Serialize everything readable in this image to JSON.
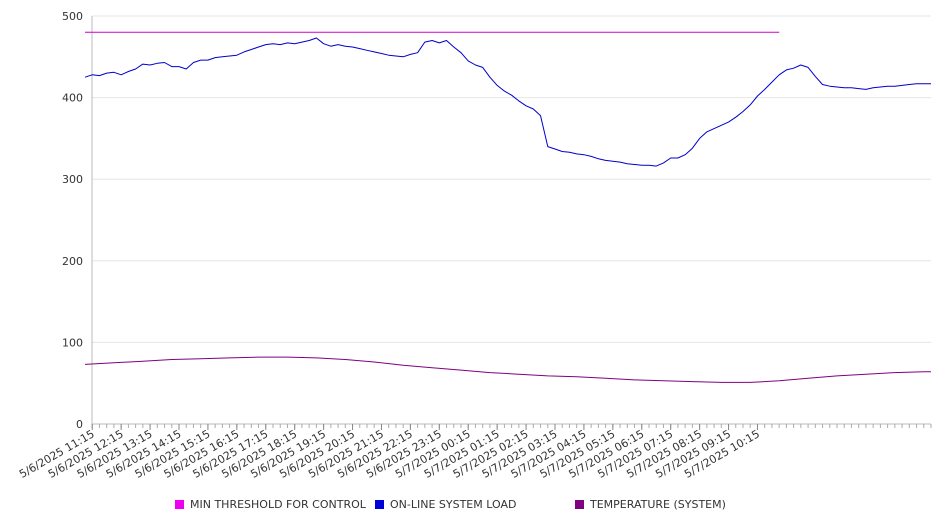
{
  "chart_data": {
    "type": "line",
    "ylim": [
      0,
      500
    ],
    "y_ticks": [
      0,
      100,
      200,
      300,
      400,
      500
    ],
    "grid": "horizontal",
    "legend_position": "bottom",
    "x_ticks": [
      "5/6/2025 11:15",
      "5/6/2025 12:15",
      "5/6/2025 13:15",
      "5/6/2025 14:15",
      "5/6/2025 15:15",
      "5/6/2025 16:15",
      "5/6/2025 17:15",
      "5/6/2025 18:15",
      "5/6/2025 19:15",
      "5/6/2025 20:15",
      "5/6/2025 21:15",
      "5/6/2025 22:15",
      "5/6/2025 23:15",
      "5/7/2025 00:15",
      "5/7/2025 01:15",
      "5/7/2025 02:15",
      "5/7/2025 03:15",
      "5/7/2025 04:15",
      "5/7/2025 05:15",
      "5/7/2025 06:15",
      "5/7/2025 07:15",
      "5/7/2025 08:15",
      "5/7/2025 09:15",
      "5/7/2025 10:15"
    ],
    "series": [
      {
        "name": "MIN THRESHOLD FOR CONTROL",
        "color": "#cc00cc",
        "points": [
          [
            "5/6/2025 11:00",
            480
          ],
          [
            "5/7/2025 11:00",
            480
          ]
        ]
      },
      {
        "name": "ON-LINE SYSTEM LOAD",
        "color": "#0000cc",
        "points": [
          [
            "5/6/2025 11:00",
            425
          ],
          [
            "5/6/2025 11:15",
            428
          ],
          [
            "5/6/2025 11:30",
            427
          ],
          [
            "5/6/2025 11:45",
            430
          ],
          [
            "5/6/2025 12:00",
            431
          ],
          [
            "5/6/2025 12:15",
            428
          ],
          [
            "5/6/2025 12:30",
            432
          ],
          [
            "5/6/2025 12:45",
            435
          ],
          [
            "5/6/2025 13:00",
            441
          ],
          [
            "5/6/2025 13:15",
            440
          ],
          [
            "5/6/2025 13:30",
            442
          ],
          [
            "5/6/2025 13:45",
            443
          ],
          [
            "5/6/2025 14:00",
            438
          ],
          [
            "5/6/2025 14:15",
            438
          ],
          [
            "5/6/2025 14:30",
            435
          ],
          [
            "5/6/2025 14:45",
            443
          ],
          [
            "5/6/2025 15:00",
            446
          ],
          [
            "5/6/2025 15:15",
            446
          ],
          [
            "5/6/2025 15:30",
            449
          ],
          [
            "5/6/2025 15:45",
            450
          ],
          [
            "5/6/2025 16:00",
            451
          ],
          [
            "5/6/2025 16:15",
            452
          ],
          [
            "5/6/2025 16:30",
            456
          ],
          [
            "5/6/2025 16:45",
            459
          ],
          [
            "5/6/2025 17:00",
            462
          ],
          [
            "5/6/2025 17:15",
            465
          ],
          [
            "5/6/2025 17:30",
            466
          ],
          [
            "5/6/2025 17:45",
            465
          ],
          [
            "5/6/2025 18:00",
            467
          ],
          [
            "5/6/2025 18:15",
            466
          ],
          [
            "5/6/2025 18:30",
            468
          ],
          [
            "5/6/2025 18:45",
            470
          ],
          [
            "5/6/2025 19:00",
            473
          ],
          [
            "5/6/2025 19:15",
            466
          ],
          [
            "5/6/2025 19:30",
            463
          ],
          [
            "5/6/2025 19:45",
            465
          ],
          [
            "5/6/2025 20:00",
            463
          ],
          [
            "5/6/2025 20:15",
            462
          ],
          [
            "5/6/2025 20:30",
            460
          ],
          [
            "5/6/2025 20:45",
            458
          ],
          [
            "5/6/2025 21:00",
            456
          ],
          [
            "5/6/2025 21:15",
            454
          ],
          [
            "5/6/2025 21:30",
            452
          ],
          [
            "5/6/2025 21:45",
            451
          ],
          [
            "5/6/2025 22:00",
            450
          ],
          [
            "5/6/2025 22:15",
            453
          ],
          [
            "5/6/2025 22:30",
            455
          ],
          [
            "5/6/2025 22:45",
            468
          ],
          [
            "5/6/2025 23:00",
            470
          ],
          [
            "5/6/2025 23:15",
            467
          ],
          [
            "5/6/2025 23:30",
            470
          ],
          [
            "5/6/2025 23:45",
            462
          ],
          [
            "5/7/2025 00:00",
            455
          ],
          [
            "5/7/2025 00:15",
            445
          ],
          [
            "5/7/2025 00:30",
            440
          ],
          [
            "5/7/2025 00:45",
            437
          ],
          [
            "5/7/2025 01:00",
            425
          ],
          [
            "5/7/2025 01:15",
            415
          ],
          [
            "5/7/2025 01:30",
            408
          ],
          [
            "5/7/2025 01:45",
            403
          ],
          [
            "5/7/2025 02:00",
            396
          ],
          [
            "5/7/2025 02:15",
            390
          ],
          [
            "5/7/2025 02:30",
            386
          ],
          [
            "5/7/2025 02:45",
            378
          ],
          [
            "5/7/2025 03:00",
            340
          ],
          [
            "5/7/2025 03:15",
            337
          ],
          [
            "5/7/2025 03:30",
            334
          ],
          [
            "5/7/2025 03:45",
            333
          ],
          [
            "5/7/2025 04:00",
            331
          ],
          [
            "5/7/2025 04:15",
            330
          ],
          [
            "5/7/2025 04:30",
            328
          ],
          [
            "5/7/2025 04:45",
            325
          ],
          [
            "5/7/2025 05:00",
            323
          ],
          [
            "5/7/2025 05:15",
            322
          ],
          [
            "5/7/2025 05:30",
            321
          ],
          [
            "5/7/2025 05:45",
            319
          ],
          [
            "5/7/2025 06:00",
            318
          ],
          [
            "5/7/2025 06:15",
            317
          ],
          [
            "5/7/2025 06:30",
            317
          ],
          [
            "5/7/2025 06:45",
            316
          ],
          [
            "5/7/2025 07:00",
            320
          ],
          [
            "5/7/2025 07:15",
            326
          ],
          [
            "5/7/2025 07:30",
            326
          ],
          [
            "5/7/2025 07:45",
            330
          ],
          [
            "5/7/2025 08:00",
            338
          ],
          [
            "5/7/2025 08:15",
            350
          ],
          [
            "5/7/2025 08:30",
            358
          ],
          [
            "5/7/2025 08:45",
            362
          ],
          [
            "5/7/2025 09:00",
            366
          ],
          [
            "5/7/2025 09:15",
            370
          ],
          [
            "5/7/2025 09:30",
            376
          ],
          [
            "5/7/2025 09:45",
            383
          ],
          [
            "5/7/2025 10:00",
            391
          ],
          [
            "5/7/2025 10:15",
            402
          ],
          [
            "5/7/2025 10:30",
            410
          ],
          [
            "5/7/2025 10:45",
            419
          ],
          [
            "5/7/2025 11:00",
            428
          ],
          [
            "5/7/2025 11:15",
            434
          ],
          [
            "5/7/2025 11:30",
            436
          ],
          [
            "5/7/2025 11:45",
            440
          ],
          [
            "5/7/2025 12:00",
            437
          ],
          [
            "5/7/2025 12:15",
            426
          ],
          [
            "5/7/2025 12:30",
            416
          ],
          [
            "5/7/2025 12:45",
            414
          ],
          [
            "5/7/2025 13:00",
            413
          ],
          [
            "5/7/2025 13:15",
            412
          ],
          [
            "5/7/2025 13:30",
            412
          ],
          [
            "5/7/2025 13:45",
            411
          ],
          [
            "5/7/2025 14:00",
            410
          ],
          [
            "5/7/2025 14:15",
            412
          ],
          [
            "5/7/2025 14:30",
            413
          ],
          [
            "5/7/2025 14:45",
            414
          ],
          [
            "5/7/2025 15:00",
            414
          ],
          [
            "5/7/2025 15:15",
            415
          ],
          [
            "5/7/2025 15:30",
            416
          ],
          [
            "5/7/2025 15:45",
            417
          ],
          [
            "5/7/2025 16:00",
            417
          ],
          [
            "5/7/2025 16:15",
            417
          ]
        ]
      },
      {
        "name": "TEMPERATURE (SYSTEM)",
        "color": "#800080",
        "points": [
          [
            "5/6/2025 11:00",
            73
          ],
          [
            "5/6/2025 12:00",
            75
          ],
          [
            "5/6/2025 13:00",
            77
          ],
          [
            "5/6/2025 14:00",
            79
          ],
          [
            "5/6/2025 15:00",
            80
          ],
          [
            "5/6/2025 16:00",
            81
          ],
          [
            "5/6/2025 17:00",
            82
          ],
          [
            "5/6/2025 18:00",
            82
          ],
          [
            "5/6/2025 19:00",
            81
          ],
          [
            "5/6/2025 20:00",
            79
          ],
          [
            "5/6/2025 21:00",
            76
          ],
          [
            "5/6/2025 22:00",
            72
          ],
          [
            "5/6/2025 23:00",
            69
          ],
          [
            "5/7/2025 00:00",
            66
          ],
          [
            "5/7/2025 01:00",
            63
          ],
          [
            "5/7/2025 02:00",
            61
          ],
          [
            "5/7/2025 03:00",
            59
          ],
          [
            "5/7/2025 04:00",
            58
          ],
          [
            "5/7/2025 05:00",
            56
          ],
          [
            "5/7/2025 06:00",
            54
          ],
          [
            "5/7/2025 07:00",
            53
          ],
          [
            "5/7/2025 08:00",
            52
          ],
          [
            "5/7/2025 09:00",
            51
          ],
          [
            "5/7/2025 10:00",
            51
          ],
          [
            "5/7/2025 11:00",
            53
          ],
          [
            "5/7/2025 12:00",
            56
          ],
          [
            "5/7/2025 13:00",
            59
          ],
          [
            "5/7/2025 14:00",
            61
          ],
          [
            "5/7/2025 15:00",
            63
          ],
          [
            "5/7/2025 16:00",
            64
          ],
          [
            "5/7/2025 16:15",
            64
          ]
        ]
      }
    ]
  },
  "legend": {
    "items": [
      {
        "label": "MIN THRESHOLD FOR CONTROL",
        "color": "#ee00ee"
      },
      {
        "label": "ON-LINE SYSTEM LOAD",
        "color": "#0000dd"
      },
      {
        "label": "TEMPERATURE (SYSTEM)",
        "color": "#800080"
      }
    ]
  }
}
